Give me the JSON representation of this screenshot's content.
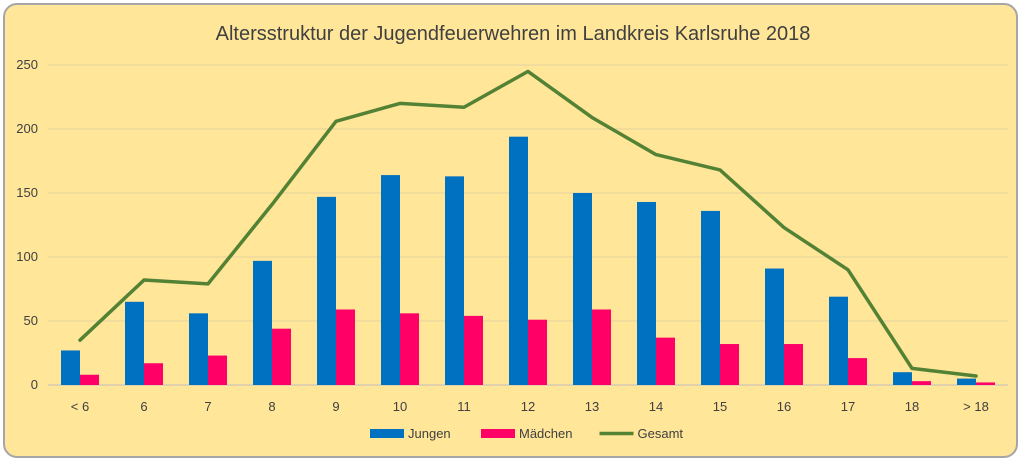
{
  "chart_data": {
    "type": "bar",
    "title": "Altersstruktur der Jugendfeuerwehren im Landkreis Karlsruhe 2018",
    "categories": [
      "< 6",
      "6",
      "7",
      "8",
      "9",
      "10",
      "11",
      "12",
      "13",
      "14",
      "15",
      "16",
      "17",
      "18",
      "> 18"
    ],
    "ylim": [
      0,
      250
    ],
    "yticks": [
      0,
      50,
      100,
      150,
      200,
      250
    ],
    "grid": true,
    "legend": "bottom",
    "series": [
      {
        "name": "Jungen",
        "type": "bar",
        "color": "#0070c0",
        "values": [
          27,
          65,
          56,
          97,
          147,
          164,
          163,
          194,
          150,
          143,
          136,
          91,
          69,
          10,
          5
        ]
      },
      {
        "name": "Mädchen",
        "type": "bar",
        "color": "#ff0066",
        "values": [
          8,
          17,
          23,
          44,
          59,
          56,
          54,
          51,
          59,
          37,
          32,
          32,
          21,
          3,
          2
        ]
      },
      {
        "name": "Gesamt",
        "type": "line",
        "color": "#548235",
        "values": [
          35,
          82,
          79,
          141,
          206,
          220,
          217,
          245,
          209,
          180,
          168,
          123,
          90,
          13,
          7
        ]
      }
    ]
  }
}
